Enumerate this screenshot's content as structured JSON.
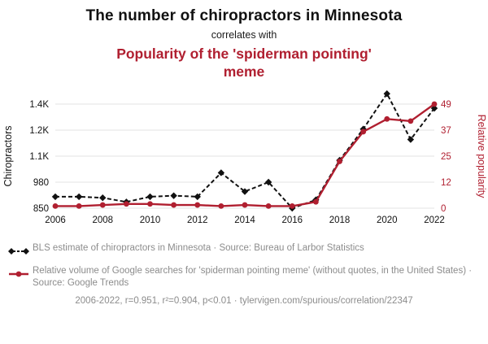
{
  "page": {
    "title": "The number of chiropractors in Minnesota",
    "subtitle": "correlates with",
    "title2": "Popularity of the 'spiderman pointing' meme"
  },
  "colors": {
    "accent_red": "#b01f30",
    "series_black": "#111111",
    "grid": "#e3e3e3",
    "muted_text": "#8c8c8c"
  },
  "chart_data": {
    "type": "line",
    "x": [
      2006,
      2007,
      2008,
      2009,
      2010,
      2011,
      2012,
      2013,
      2014,
      2015,
      2016,
      2017,
      2018,
      2019,
      2020,
      2021,
      2022
    ],
    "x_tick_labels": [
      "2006",
      "2008",
      "2010",
      "2012",
      "2014",
      "2016",
      "2018",
      "2020",
      "2022"
    ],
    "left_axis": {
      "label": "Chiropractors",
      "domain": [
        850,
        1350
      ],
      "tick_values": [
        850,
        975,
        1100,
        1225,
        1350
      ],
      "tick_labels": [
        "850",
        "980",
        "1.1K",
        "1.2K",
        "1.4K"
      ],
      "color": "#111111"
    },
    "right_axis": {
      "label": "Relative popularity",
      "domain": [
        0,
        49
      ],
      "tick_values": [
        0,
        12.25,
        24.5,
        36.75,
        49
      ],
      "tick_labels": [
        "0",
        "12",
        "25",
        "37",
        "49"
      ],
      "color": "#b01f30"
    },
    "series": [
      {
        "name": "BLS estimate of chiropractors in Minnesota",
        "axis": "left",
        "color": "#111111",
        "style": "dashed-diamond",
        "values": [
          905,
          905,
          900,
          880,
          905,
          910,
          905,
          1020,
          930,
          975,
          850,
          890,
          1080,
          1230,
          1400,
          1180,
          1330
        ]
      },
      {
        "name": "Relative volume of Google searches for 'spiderman pointing meme'",
        "axis": "right",
        "color": "#b01f30",
        "style": "solid-circle",
        "values": [
          1,
          1,
          1.5,
          2,
          2,
          1.5,
          1.5,
          1,
          1.5,
          1,
          1,
          3,
          22,
          36,
          42,
          41,
          49
        ]
      }
    ],
    "grid": true,
    "legend_position": "below"
  },
  "legend": [
    {
      "text": "BLS estimate of chiropractors in Minnesota · Source: Bureau of Larbor Statistics"
    },
    {
      "text": "Relative volume of Google searches for 'spiderman pointing meme' (without quotes, in the United States) · Source: Google Trends"
    }
  ],
  "footer": {
    "text": "2006-2022, r=0.951, r²=0.904, p<0.01 · tylervigen.com/spurious/correlation/22347"
  }
}
